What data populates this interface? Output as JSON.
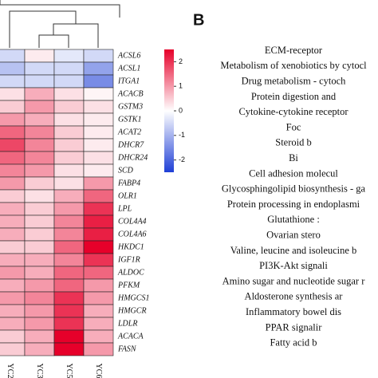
{
  "chart_data": {
    "type": "heatmap",
    "x": [
      "YC2",
      "YC3",
      "YC5",
      "YC6"
    ],
    "categories": [
      "ACSL6",
      "ACSL1",
      "ITGA1",
      "ACACB",
      "GSTM3",
      "GSTK1",
      "ACAT2",
      "DHCR7",
      "DHCR24",
      "SCD",
      "FABP4",
      "OLR1",
      "LPL",
      "COL4A4",
      "COL4A6",
      "HKDC1",
      "IGF1R",
      "ALDOC",
      "PFKM",
      "HMGCS1",
      "HMGCR",
      "LDLR",
      "ACACA",
      "FASN"
    ],
    "values": [
      [
        -0.5,
        0.2,
        -0.3,
        -0.5
      ],
      [
        -0.8,
        -0.5,
        -0.5,
        -1.2
      ],
      [
        -0.5,
        -0.5,
        -0.5,
        -1.5
      ],
      [
        0.3,
        0.8,
        0.3,
        0.1
      ],
      [
        0.5,
        1.0,
        0.5,
        0.3
      ],
      [
        1.0,
        0.8,
        0.3,
        0.2
      ],
      [
        1.5,
        1.2,
        0.5,
        0.2
      ],
      [
        1.8,
        1.2,
        0.5,
        0.2
      ],
      [
        1.5,
        1.2,
        0.5,
        0.3
      ],
      [
        1.2,
        1.0,
        0.3,
        0.2
      ],
      [
        1.0,
        0.5,
        0.3,
        1.0
      ],
      [
        0.5,
        0.3,
        0.8,
        1.5
      ],
      [
        0.8,
        0.5,
        1.0,
        2.0
      ],
      [
        0.8,
        0.5,
        1.2,
        2.2
      ],
      [
        0.8,
        0.5,
        1.2,
        2.2
      ],
      [
        0.5,
        0.5,
        1.5,
        2.5
      ],
      [
        0.8,
        0.8,
        1.2,
        2.0
      ],
      [
        1.0,
        0.8,
        1.5,
        1.5
      ],
      [
        0.8,
        1.0,
        1.5,
        1.0
      ],
      [
        1.0,
        1.2,
        2.0,
        1.0
      ],
      [
        0.8,
        1.0,
        2.0,
        0.8
      ],
      [
        0.8,
        1.0,
        2.0,
        0.8
      ],
      [
        0.5,
        0.8,
        2.5,
        0.8
      ],
      [
        0.5,
        0.8,
        2.5,
        1.0
      ]
    ],
    "zlim": [
      -2.5,
      2.5
    ],
    "zticks": [
      2,
      1,
      0,
      -1,
      -2
    ],
    "colors": [
      "#1f3fd6",
      "#ffffff",
      "#e6002a"
    ]
  },
  "panel_b": {
    "label": "B",
    "items": [
      "ECM-receptor",
      "Metabolism of xenobiotics by cytocl",
      "Drug metabolism - cytoch",
      "Protein digestion and",
      "Cytokine-cytokine receptor",
      "Foc",
      "Steroid b",
      "Bi",
      "Cell adhesion molecul",
      "Glycosphingolipid biosynthesis - ga",
      "Protein processing in endoplasmi",
      "Glutathione :",
      "Ovarian stero",
      "Valine, leucine and isoleucine b",
      "PI3K-Akt signali",
      "Amino sugar and nucleotide sugar r",
      "Aldosterone synthesis ar",
      "Inflammatory bowel dis",
      "PPAR signalir",
      "Fatty acid b"
    ]
  }
}
